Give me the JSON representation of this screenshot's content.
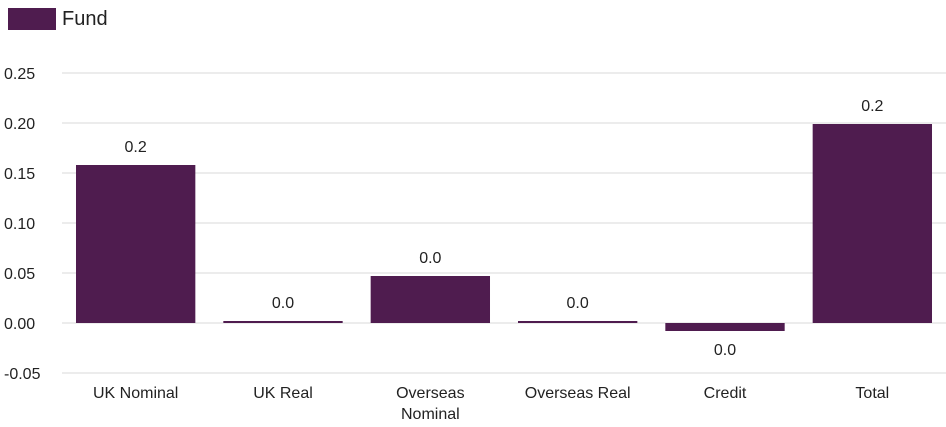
{
  "colors": {
    "fund": "#4f1c4f",
    "grid": "#d9d9d9",
    "text": "#222222"
  },
  "chart_data": {
    "type": "bar",
    "categories": [
      "UK Nominal",
      "UK Real",
      "Overseas Nominal",
      "Overseas Real",
      "Credit",
      "Total"
    ],
    "category_label_lines": [
      [
        "UK Nominal"
      ],
      [
        "UK Real"
      ],
      [
        "Overseas",
        "Nominal"
      ],
      [
        "Overseas Real"
      ],
      [
        "Credit"
      ],
      [
        "Total"
      ]
    ],
    "series": [
      {
        "name": "Fund",
        "values": [
          0.158,
          0.002,
          0.047,
          0.002,
          -0.008,
          0.199
        ],
        "data_labels": [
          "0.2",
          "0.0",
          "0.0",
          "0.0",
          "0.0",
          "0.2"
        ]
      }
    ],
    "ylim": [
      -0.05,
      0.25
    ],
    "yticks": [
      -0.05,
      0.0,
      0.05,
      0.1,
      0.15,
      0.2,
      0.25
    ],
    "ytick_labels": [
      "-0.05",
      "0.00",
      "0.05",
      "0.10",
      "0.15",
      "0.20",
      "0.25"
    ],
    "grid": true,
    "legend": "top-left",
    "title": "",
    "xlabel": "",
    "ylabel": ""
  }
}
